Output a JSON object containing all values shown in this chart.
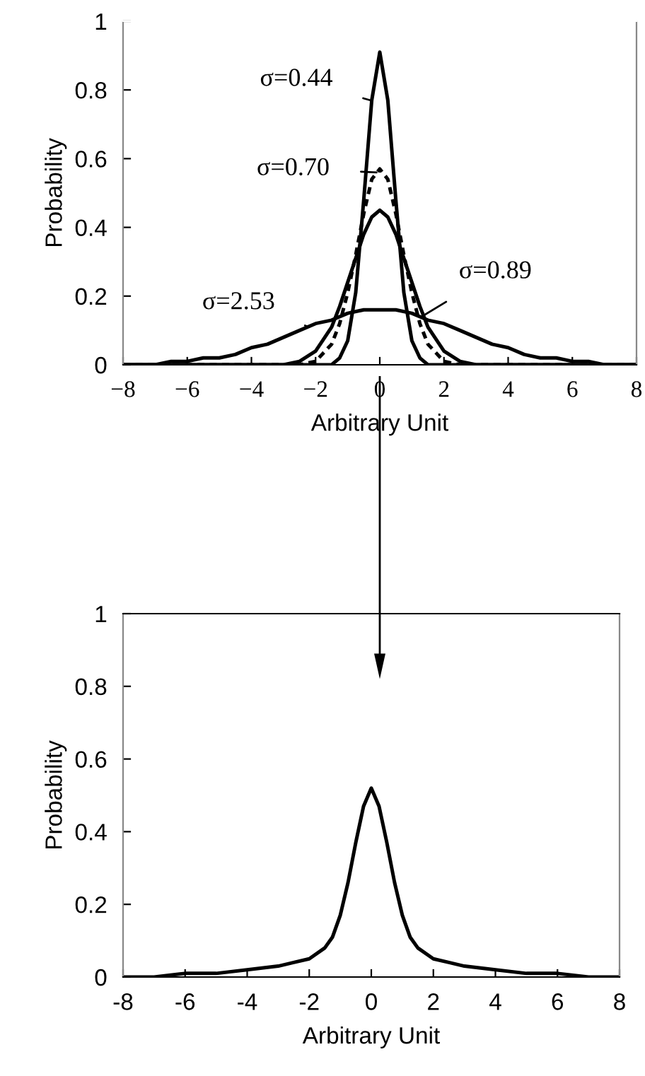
{
  "chart_data": [
    {
      "type": "line",
      "xlabel": "Arbitrary Unit",
      "ylabel": "Probability",
      "xlim": [
        -8,
        8
      ],
      "ylim": [
        0,
        1
      ],
      "xticks": [
        {
          "value": -8,
          "label": "−8"
        },
        {
          "value": -6,
          "label": "−6"
        },
        {
          "value": -4,
          "label": "−4"
        },
        {
          "value": -2,
          "label": "−2"
        },
        0,
        2,
        4,
        6,
        8
      ],
      "yticks": [
        0,
        0.2,
        0.4,
        0.6,
        0.8,
        1
      ],
      "series": [
        {
          "color": "#000000",
          "line_style": "solid",
          "x": [
            -8,
            -2,
            -1.5,
            -1.25,
            -1,
            -0.75,
            -0.5,
            -0.25,
            0,
            0.25,
            0.5,
            0.75,
            1,
            1.25,
            1.5,
            2,
            8
          ],
          "values": [
            0,
            0,
            0,
            0.02,
            0.07,
            0.21,
            0.48,
            0.77,
            0.91,
            0.77,
            0.48,
            0.21,
            0.07,
            0.02,
            0,
            0,
            0
          ]
        },
        {
          "color": "#000000",
          "line_style": "dashed",
          "x": [
            -8,
            -3,
            -2.5,
            -2,
            -1.5,
            -1.25,
            -1,
            -0.75,
            -0.5,
            -0.25,
            0,
            0.25,
            0.5,
            0.75,
            1,
            1.25,
            1.5,
            2,
            2.5,
            3,
            8
          ],
          "values": [
            0,
            0,
            0,
            0.01,
            0.06,
            0.12,
            0.21,
            0.32,
            0.44,
            0.54,
            0.57,
            0.54,
            0.44,
            0.32,
            0.21,
            0.12,
            0.06,
            0.01,
            0,
            0,
            0
          ]
        },
        {
          "color": "#000000",
          "line_style": "solid",
          "x": [
            -8,
            -3.5,
            -3,
            -2.5,
            -2,
            -1.5,
            -1.25,
            -1,
            -0.75,
            -0.5,
            -0.25,
            0,
            0.25,
            0.5,
            0.75,
            1,
            1.25,
            1.5,
            2,
            2.5,
            3,
            3.5,
            8
          ],
          "values": [
            0,
            0,
            0,
            0.01,
            0.04,
            0.11,
            0.17,
            0.24,
            0.31,
            0.38,
            0.43,
            0.45,
            0.43,
            0.38,
            0.31,
            0.24,
            0.17,
            0.11,
            0.04,
            0.01,
            0,
            0,
            0
          ]
        },
        {
          "color": "#000000",
          "line_style": "solid",
          "x": [
            -8,
            -7,
            -6.5,
            -6,
            -5.5,
            -5,
            -4.5,
            -4,
            -3.5,
            -3,
            -2.5,
            -2,
            -1.5,
            -1,
            -0.5,
            0,
            0.5,
            1,
            1.5,
            2,
            2.5,
            3,
            3.5,
            4,
            4.5,
            5,
            5.5,
            6,
            6.5,
            7,
            8
          ],
          "values": [
            0,
            0,
            0.01,
            0.01,
            0.02,
            0.02,
            0.03,
            0.05,
            0.06,
            0.08,
            0.1,
            0.12,
            0.13,
            0.15,
            0.16,
            0.16,
            0.16,
            0.15,
            0.13,
            0.12,
            0.1,
            0.08,
            0.06,
            0.05,
            0.03,
            0.02,
            0.02,
            0.01,
            0.01,
            0,
            0
          ]
        }
      ],
      "annotations": [
        {
          "text": "σ=0.44",
          "x": -0.3,
          "y": 0.77
        },
        {
          "text": "σ=0.70",
          "x": -0.1,
          "y": 0.56
        },
        {
          "text": "σ=0.89",
          "x": 1.3,
          "y": 0.14
        },
        {
          "text": "σ=2.53",
          "x": -2.2,
          "y": 0.11
        }
      ]
    },
    {
      "type": "line",
      "xlabel": "Arbitrary Unit",
      "ylabel": "Probability",
      "xlim": [
        -8,
        8
      ],
      "ylim": [
        0,
        1
      ],
      "xticks": [
        -8,
        -6,
        -4,
        -2,
        0,
        2,
        4,
        6,
        8
      ],
      "yticks": [
        0,
        0.2,
        0.4,
        0.6,
        0.8,
        1
      ],
      "series": [
        {
          "color": "#000000",
          "line_style": "solid",
          "x": [
            -8,
            -7,
            -6,
            -5,
            -4,
            -3,
            -2.5,
            -2,
            -1.5,
            -1.25,
            -1,
            -0.75,
            -0.5,
            -0.25,
            0,
            0.25,
            0.5,
            0.75,
            1,
            1.25,
            1.5,
            2,
            2.5,
            3,
            4,
            5,
            6,
            7,
            8
          ],
          "values": [
            0,
            0,
            0.01,
            0.01,
            0.02,
            0.03,
            0.04,
            0.05,
            0.08,
            0.11,
            0.17,
            0.26,
            0.37,
            0.47,
            0.52,
            0.47,
            0.37,
            0.26,
            0.17,
            0.11,
            0.08,
            0.05,
            0.04,
            0.03,
            0.02,
            0.01,
            0.01,
            0,
            0
          ]
        }
      ]
    }
  ]
}
